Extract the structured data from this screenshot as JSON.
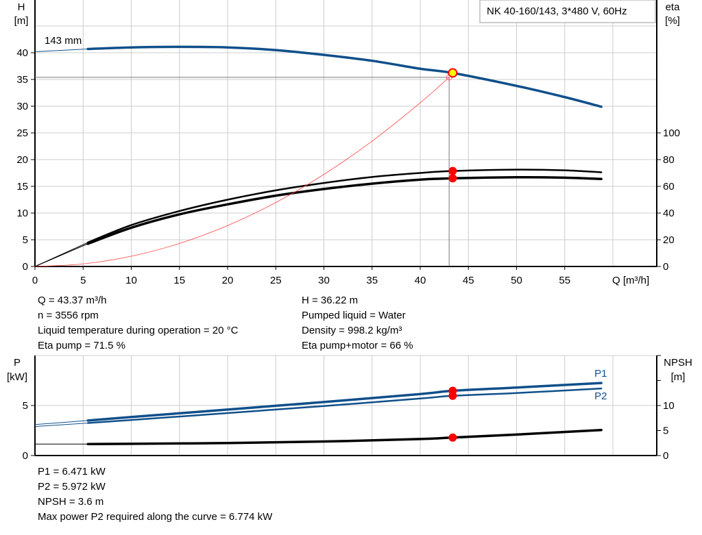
{
  "chart_data": [
    {
      "type": "line",
      "title": "NK 40-160/143, 3*480 V, 60Hz",
      "xlabel": "Q [m³/h]",
      "ylabel": "H\n[m]",
      "ylabel_right": "eta\n[%]",
      "xlim": [
        0,
        60
      ],
      "ylim": [
        0,
        50
      ],
      "ylim_right": [
        0,
        128
      ],
      "x_ticks": [
        0,
        5,
        10,
        15,
        20,
        25,
        30,
        35,
        40,
        45,
        50,
        55
      ],
      "y_ticks": [
        0,
        5,
        10,
        15,
        20,
        25,
        30,
        35,
        40
      ],
      "y_ticks_right": [
        0,
        20,
        40,
        60,
        80,
        100
      ],
      "grid": true,
      "annotation": "143 mm",
      "series": [
        {
          "id": "head",
          "axis": "left",
          "color": "#0f4f8a",
          "thin_until": 5.5,
          "x": [
            0,
            5.5,
            10,
            15,
            20,
            25,
            30,
            35,
            40,
            43.37,
            50,
            55,
            58.8
          ],
          "y": [
            40.2,
            40.7,
            41.0,
            41.1,
            41.0,
            40.5,
            39.6,
            38.5,
            37.0,
            36.22,
            33.8,
            31.7,
            29.9
          ]
        },
        {
          "id": "eta-pump",
          "axis": "right",
          "color": "#000000",
          "thin_until": 5.5,
          "x": [
            0,
            5.5,
            10,
            15,
            20,
            25,
            30,
            35,
            40,
            43.37,
            50,
            55,
            58.8
          ],
          "y": [
            0,
            18,
            31,
            41.5,
            50,
            57,
            62.5,
            67,
            70,
            71.5,
            72.5,
            72,
            70.5
          ]
        },
        {
          "id": "eta-pump-motor",
          "axis": "right",
          "color": "#000000",
          "thin_until": 5.5,
          "x": [
            0,
            5.5,
            10,
            15,
            20,
            25,
            30,
            35,
            40,
            43.37,
            50,
            55,
            58.8
          ],
          "y": [
            0,
            17,
            29,
            39,
            46.5,
            53,
            58,
            62,
            65,
            66,
            66.8,
            66.5,
            65.5
          ]
        },
        {
          "id": "system-curve",
          "axis": "left",
          "color": "#ff4040",
          "x": [
            0,
            5,
            10,
            15,
            20,
            25,
            30,
            35,
            40,
            43
          ],
          "y": [
            0,
            0.48,
            1.92,
            4.31,
            7.66,
            11.97,
            17.23,
            23.46,
            30.64,
            35.4
          ]
        }
      ],
      "operating_point": {
        "Q": 43.37,
        "H": 36.22,
        "eta_pump": 71.5,
        "eta_total": 66
      },
      "system_point": {
        "Q": 43,
        "H": 35.4
      }
    },
    {
      "type": "line",
      "ylabel": "P\n[kW]",
      "ylabel_right": "NPSH\n[m]",
      "xlim": [
        0,
        60
      ],
      "ylim": [
        0,
        10
      ],
      "ylim_right": [
        0,
        20
      ],
      "y_ticks": [
        0,
        5
      ],
      "y_ticks_right": [
        0,
        5,
        10
      ],
      "grid": true,
      "series": [
        {
          "id": "P1",
          "name": "P1",
          "axis": "left",
          "color": "#0f4f8a",
          "thin_until": 5.5,
          "x": [
            0,
            5.5,
            10,
            20,
            30,
            40,
            43.37,
            50,
            58.8
          ],
          "y": [
            3.1,
            3.5,
            3.85,
            4.6,
            5.35,
            6.15,
            6.471,
            6.8,
            7.25
          ]
        },
        {
          "id": "P2",
          "name": "P2",
          "axis": "left",
          "color": "#0f4f8a",
          "thin_until": 5.5,
          "x": [
            0,
            5.5,
            10,
            20,
            30,
            40,
            43.37,
            50,
            58.8
          ],
          "y": [
            2.9,
            3.25,
            3.55,
            4.25,
            4.95,
            5.7,
            5.972,
            6.25,
            6.7
          ]
        },
        {
          "id": "NPSH",
          "axis": "right",
          "color": "#000000",
          "thin_until": 5.5,
          "x": [
            0,
            5.5,
            10,
            20,
            30,
            40,
            43.37,
            50,
            58.8
          ],
          "y": [
            2.3,
            2.3,
            2.35,
            2.5,
            2.8,
            3.3,
            3.6,
            4.2,
            5.1
          ]
        }
      ],
      "markers": {
        "Q": 43.37,
        "P1": 6.471,
        "P2": 5.972,
        "NPSH": 3.6
      }
    }
  ],
  "info_top": {
    "q": "Q = 43.37 m³/h",
    "n": "n = 3556 rpm",
    "temp": "Liquid temperature during operation = 20 °C",
    "eta_pump": "Eta pump = 71.5 %",
    "h": "H = 36.22 m",
    "liquid": "Pumped liquid = Water",
    "density": "Density = 998.2 kg/m³",
    "eta_total": "Eta pump+motor = 66 %"
  },
  "info_bottom": {
    "p1": "P1 = 6.471 kW",
    "p2": "P2 = 5.972 kW",
    "npsh": "NPSH = 3.6 m",
    "max_p2": "Max power P2 required along the curve = 6.774 kW"
  }
}
